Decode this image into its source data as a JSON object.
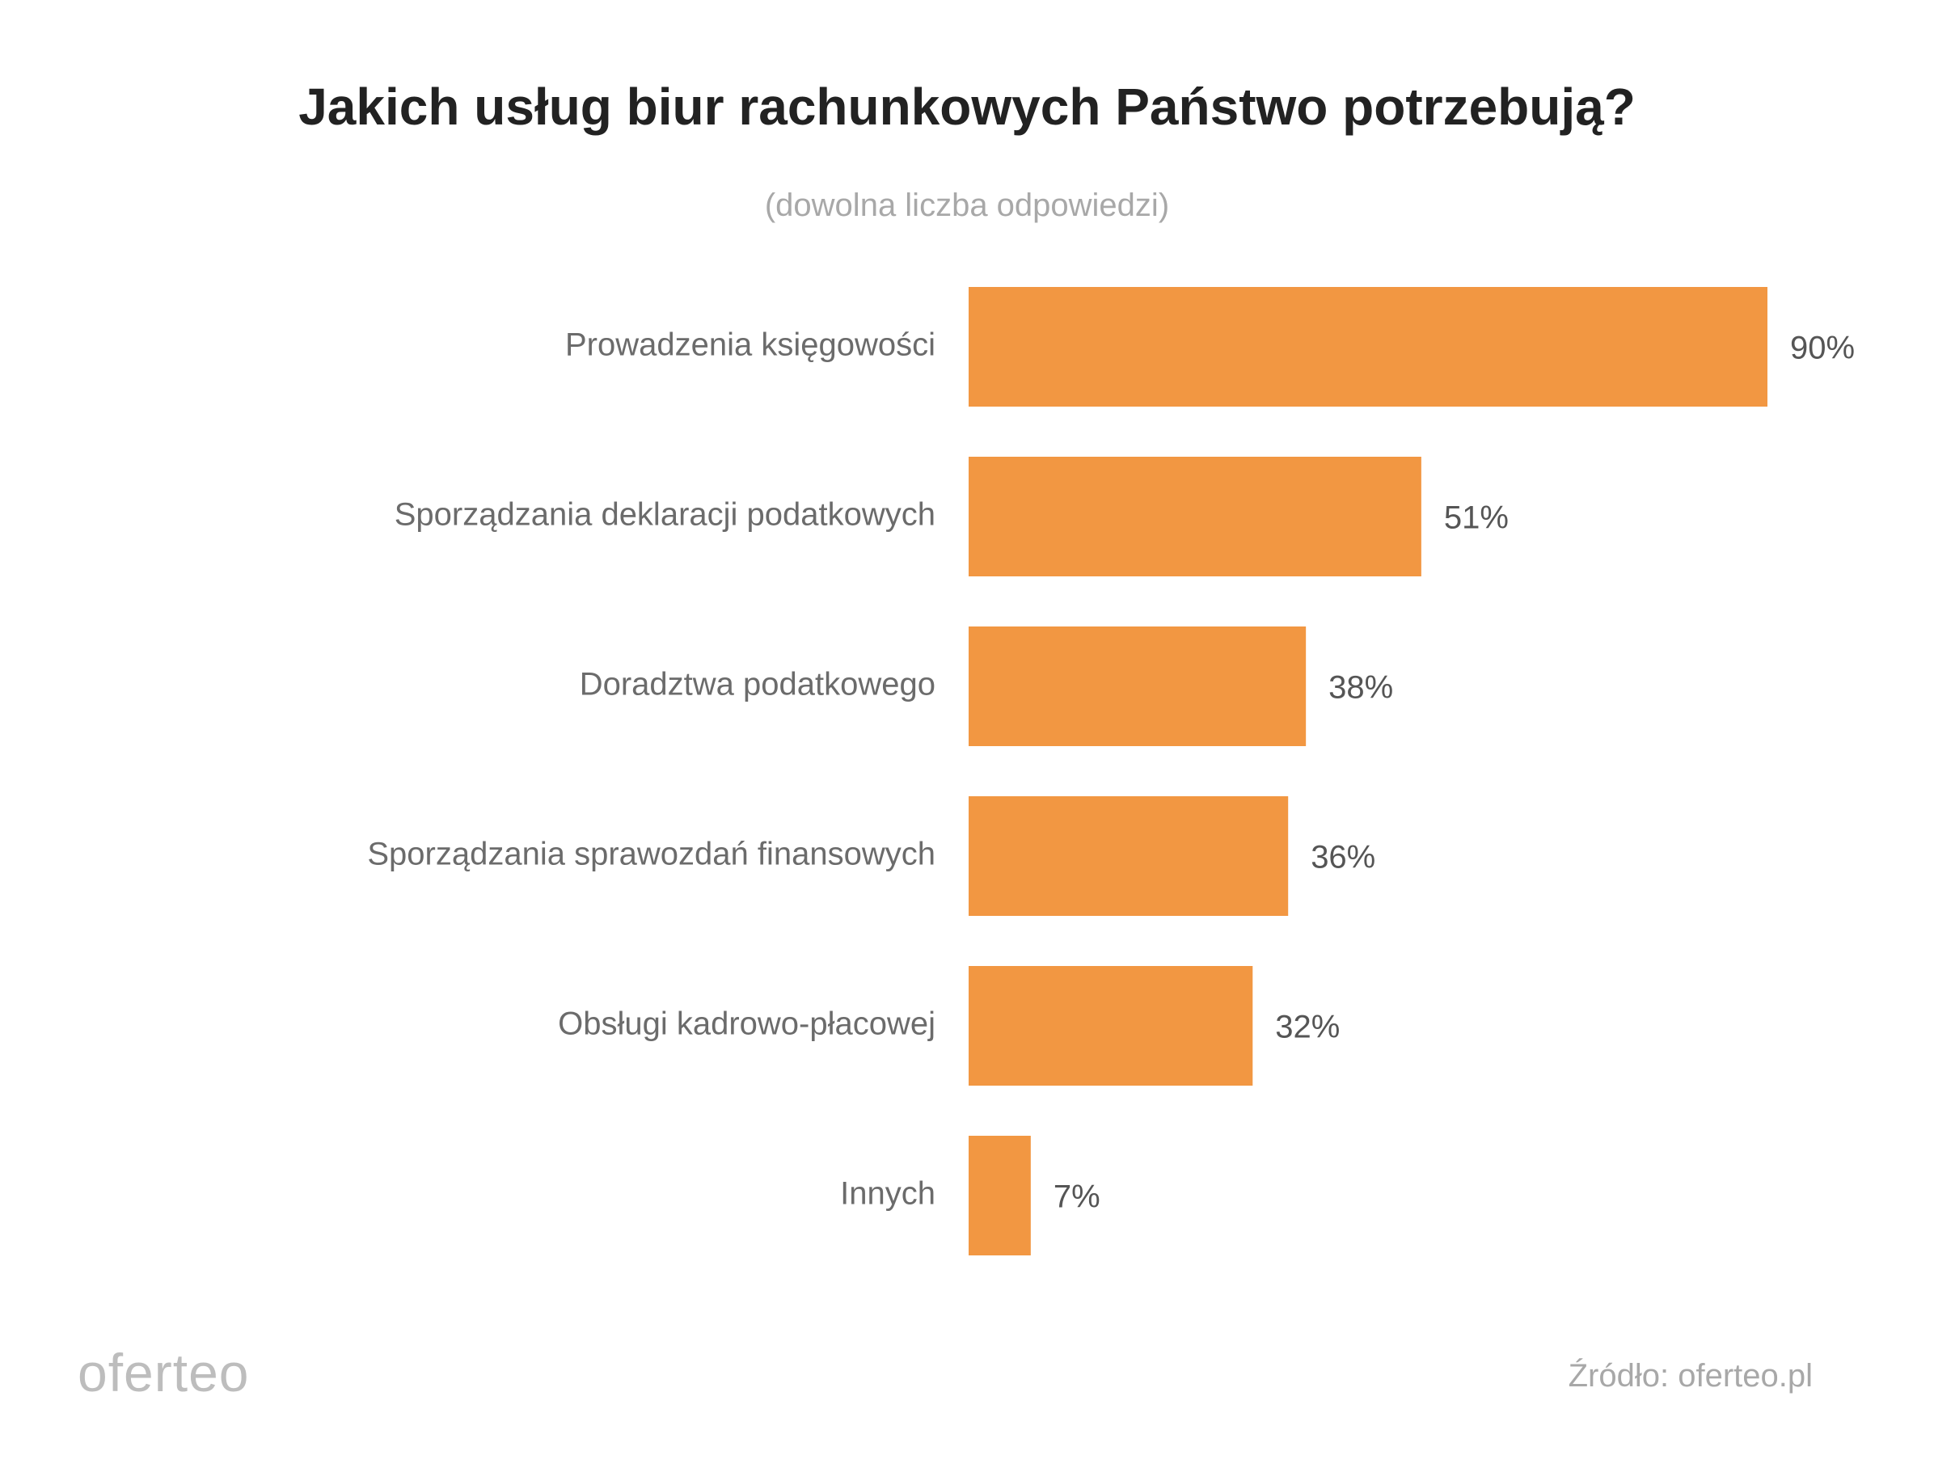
{
  "chart_data": {
    "type": "bar",
    "orientation": "horizontal",
    "title": "Jakich usług biur rachunkowych Państwo potrzebują?",
    "subtitle": "(dowolna liczba odpowiedzi)",
    "categories": [
      "Prowadzenia księgowości",
      "Sporządzania deklaracji podatkowych",
      "Doradztwa podatkowego",
      "Sporządzania sprawozdań finansowych",
      "Obsługi kadrowo-płacowej",
      "Innych"
    ],
    "values": [
      90,
      51,
      38,
      36,
      32,
      7
    ],
    "value_labels": [
      "90%",
      "51%",
      "38%",
      "36%",
      "32%",
      "7%"
    ],
    "xlim": [
      0,
      90
    ],
    "xlabel": "",
    "ylabel": "",
    "grid": false,
    "legend": false
  },
  "colors": {
    "bar": "#F29742",
    "label": "#6b6b6b",
    "value": "#555555"
  },
  "branding": {
    "logo_text": "oferteo",
    "source_text": "Źródło: oferteo.pl"
  }
}
